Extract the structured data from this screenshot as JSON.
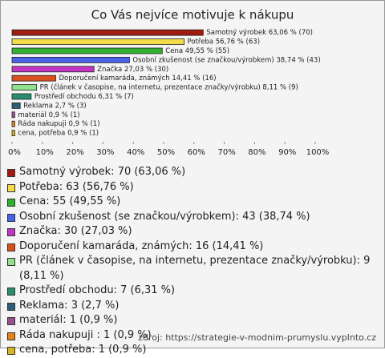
{
  "chart_data": {
    "type": "bar",
    "orientation": "horizontal",
    "title": "Co Vás nejvíce motivuje k nákupu",
    "categories": [
      "Samotný výrobek",
      "Potřeba",
      "Cena",
      "Osobní zkušenost (se značkou/výrobkem)",
      "Značka",
      "Doporučení kamaráda, známých",
      "PR (článek v časopise, na internetu, prezentace značky/výrobku)",
      "Prostředí obchodu",
      "Reklama",
      "materiál",
      "Ráda nakupuji",
      "cena, potřeba"
    ],
    "values": [
      63.06,
      56.76,
      49.55,
      38.74,
      27.03,
      14.41,
      8.11,
      6.31,
      2.7,
      0.9,
      0.9,
      0.9
    ],
    "value_labels": [
      "Samotný výrobek 63,06 % (70)",
      "Potřeba 56,76 % (63)",
      "Cena 49,55 % (55)",
      "Osobní zkušenost (se značkou/výrobkem) 38,74 % (43)",
      "Značka 27,03 % (30)",
      "Doporučení kamaráda, známých 14,41 % (16)",
      "PR (článek v časopise, na internetu, prezentace značky/výrobku) 8,11 % (9)",
      "Prostředí obchodu 6,31 % (7)",
      "Reklama 2,7 % (3)",
      "materiál 0,9 % (1)",
      "Ráda nakupuji  0,9 % (1)",
      "cena, potřeba 0,9 % (1)"
    ],
    "legend_labels": [
      "Samotný výrobek: 70 (63,06 %)",
      "Potřeba: 63 (56,76 %)",
      "Cena: 55 (49,55 %)",
      "Osobní zkušenost (se značkou/výrobkem): 43 (38,74 %)",
      "Značka: 30 (27,03 %)",
      "Doporučení kamaráda, známých: 16 (14,41 %)",
      "PR (článek v časopise, na internetu, prezentace značky/výrobku): 9 (8,11 %)",
      "Prostředí obchodu: 7 (6,31 %)",
      "Reklama: 3 (2,7 %)",
      "materiál: 1 (0,9 %)",
      "Ráda nakupuji : 1 (0,9 %)",
      "cena, potřeba: 1 (0,9 %)"
    ],
    "colors": [
      "#a01c10",
      "#f2dc4a",
      "#2fb12f",
      "#4a62e6",
      "#c235c2",
      "#d8501e",
      "#8fe08f",
      "#2a8c6e",
      "#2b5f78",
      "#9a4f8f",
      "#e6821c",
      "#d6b424"
    ],
    "xlim": [
      0,
      100
    ],
    "xticks": [
      {
        "value": 0,
        "label": "0%"
      },
      {
        "value": 10,
        "label": "10%"
      },
      {
        "value": 20,
        "label": "20%"
      },
      {
        "value": 30,
        "label": "30%"
      },
      {
        "value": 40,
        "label": "40%"
      },
      {
        "value": 50,
        "label": "50%"
      },
      {
        "value": 60,
        "label": "60%"
      },
      {
        "value": 70,
        "label": "70%"
      },
      {
        "value": 80,
        "label": "80%"
      },
      {
        "value": 90,
        "label": "90%"
      },
      {
        "value": 100,
        "label": "100%"
      }
    ],
    "source": "zdroj: https://strategie-v-modnim-prumyslu.vyplnto.cz"
  }
}
